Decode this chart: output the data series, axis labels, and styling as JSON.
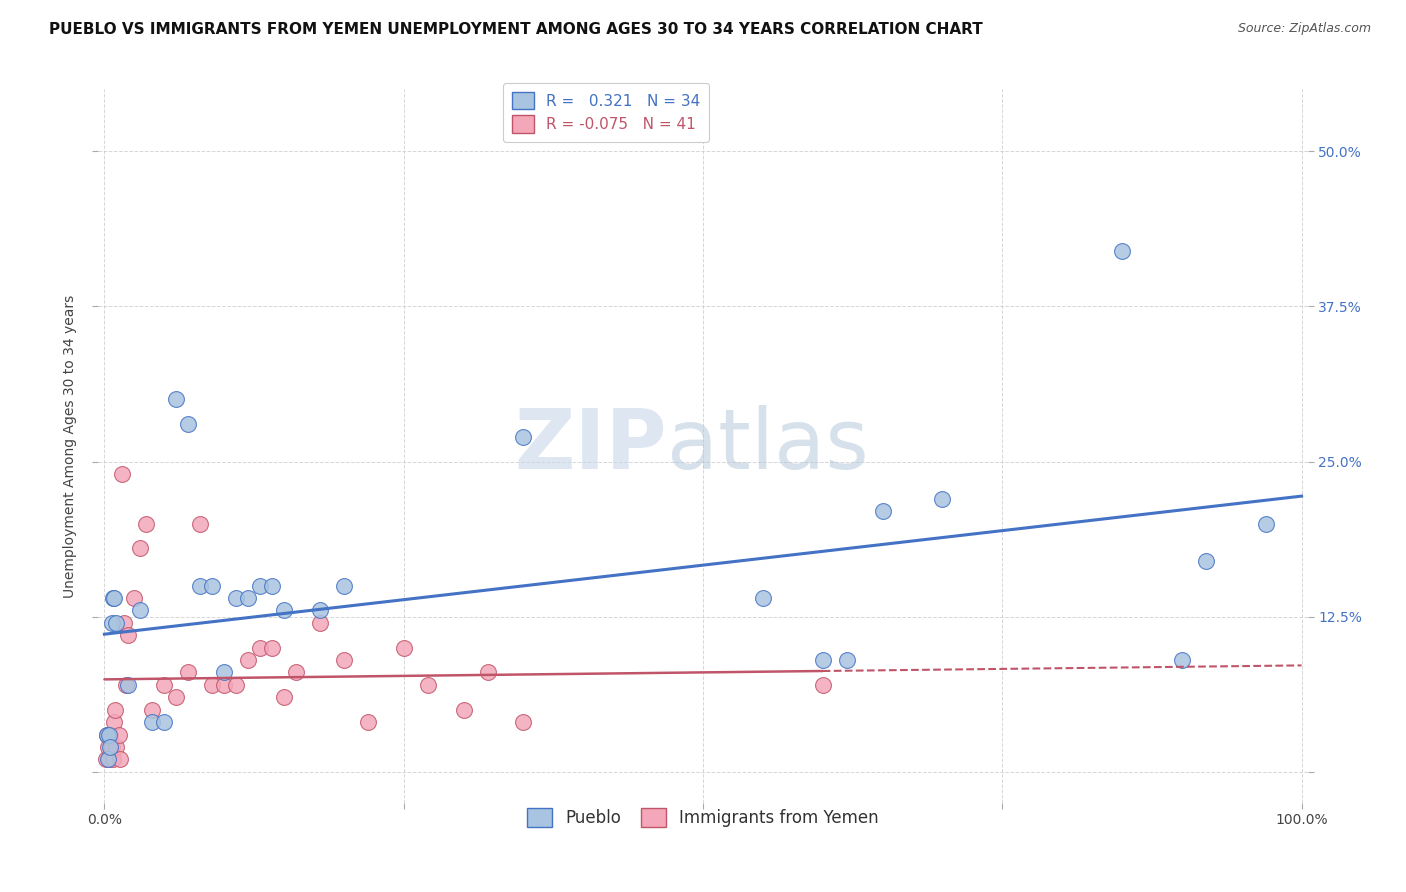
{
  "title": "PUEBLO VS IMMIGRANTS FROM YEMEN UNEMPLOYMENT AMONG AGES 30 TO 34 YEARS CORRELATION CHART",
  "source": "Source: ZipAtlas.com",
  "ylabel": "Unemployment Among Ages 30 to 34 years",
  "xlim": [
    -0.005,
    1.005
  ],
  "ylim": [
    -0.025,
    0.55
  ],
  "xticks": [
    0.0,
    0.25,
    0.5,
    0.75,
    1.0
  ],
  "xticklabels": [
    "0.0%",
    "",
    "",
    "",
    "100.0%"
  ],
  "yticks": [
    0.0,
    0.125,
    0.25,
    0.375,
    0.5
  ],
  "yticklabels": [
    "",
    "12.5%",
    "25.0%",
    "37.5%",
    "50.0%"
  ],
  "pueblo_R": 0.321,
  "pueblo_N": 34,
  "yemen_R": -0.075,
  "yemen_N": 41,
  "pueblo_color": "#a8c4e0",
  "pueblo_line_color": "#4472c4",
  "yemen_color": "#f4a7b9",
  "yemen_line_color": "#c0556a",
  "pueblo_x": [
    0.002,
    0.003,
    0.004,
    0.005,
    0.006,
    0.007,
    0.008,
    0.01,
    0.02,
    0.03,
    0.04,
    0.05,
    0.06,
    0.07,
    0.08,
    0.09,
    0.1,
    0.11,
    0.12,
    0.13,
    0.14,
    0.15,
    0.18,
    0.2,
    0.35,
    0.55,
    0.6,
    0.62,
    0.65,
    0.7,
    0.85,
    0.9,
    0.92,
    0.97
  ],
  "pueblo_y": [
    0.03,
    0.01,
    0.03,
    0.02,
    0.12,
    0.14,
    0.14,
    0.12,
    0.07,
    0.13,
    0.04,
    0.04,
    0.3,
    0.28,
    0.15,
    0.15,
    0.08,
    0.14,
    0.14,
    0.15,
    0.15,
    0.13,
    0.13,
    0.15,
    0.27,
    0.14,
    0.09,
    0.09,
    0.21,
    0.22,
    0.42,
    0.09,
    0.17,
    0.2
  ],
  "yemen_x": [
    0.001,
    0.002,
    0.003,
    0.004,
    0.005,
    0.006,
    0.007,
    0.008,
    0.009,
    0.01,
    0.012,
    0.013,
    0.015,
    0.016,
    0.018,
    0.02,
    0.025,
    0.03,
    0.035,
    0.04,
    0.05,
    0.06,
    0.07,
    0.08,
    0.09,
    0.1,
    0.11,
    0.12,
    0.13,
    0.14,
    0.15,
    0.16,
    0.18,
    0.2,
    0.22,
    0.25,
    0.27,
    0.3,
    0.32,
    0.35,
    0.6
  ],
  "yemen_y": [
    0.01,
    0.03,
    0.02,
    0.01,
    0.03,
    0.02,
    0.01,
    0.04,
    0.05,
    0.02,
    0.03,
    0.01,
    0.24,
    0.12,
    0.07,
    0.11,
    0.14,
    0.18,
    0.2,
    0.05,
    0.07,
    0.06,
    0.08,
    0.2,
    0.07,
    0.07,
    0.07,
    0.09,
    0.1,
    0.1,
    0.06,
    0.08,
    0.12,
    0.09,
    0.04,
    0.1,
    0.07,
    0.05,
    0.08,
    0.04,
    0.07
  ],
  "watermark_zip": "ZIP",
  "watermark_atlas": "atlas",
  "background_color": "#ffffff",
  "grid_color": "#cccccc",
  "legend_pueblo_label": "Pueblo",
  "legend_yemen_label": "Immigrants from Yemen",
  "title_fontsize": 11,
  "axis_label_fontsize": 10,
  "tick_fontsize": 10,
  "legend_fontsize": 11
}
